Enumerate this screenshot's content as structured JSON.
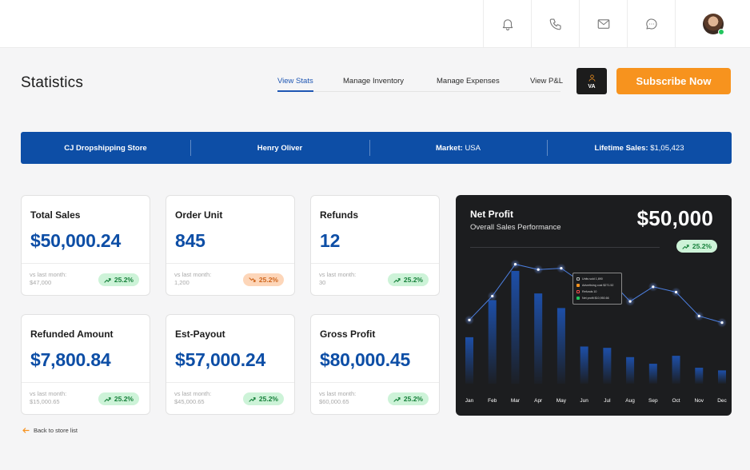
{
  "header": {
    "icons": [
      "bell-icon",
      "phone-icon",
      "mail-icon",
      "chat-icon"
    ],
    "avatar_status": "online"
  },
  "page": {
    "title": "Statistics"
  },
  "tabs": [
    {
      "label": "View Stats",
      "active": true
    },
    {
      "label": "Manage Inventory",
      "active": false
    },
    {
      "label": "Manage Expenses",
      "active": false
    },
    {
      "label": "View P&L",
      "active": false
    }
  ],
  "va_button": {
    "label": "VA"
  },
  "subscribe_button": {
    "label": "Subscribe Now"
  },
  "banner": {
    "store": "CJ Dropshipping Store",
    "owner": "Henry Oliver",
    "market_label": "Market:",
    "market_value": "USA",
    "lifetime_label": "Lifetime Sales:",
    "lifetime_value": "$1,05,423"
  },
  "cards": [
    {
      "label": "Total Sales",
      "value": "$50,000.24",
      "vs_label": "vs last month:",
      "vs_value": "$47,000",
      "change": "25.2%",
      "trend": "up"
    },
    {
      "label": "Order Unit",
      "value": "845",
      "vs_label": "vs last month:",
      "vs_value": "1,200",
      "change": "25.2%",
      "trend": "down"
    },
    {
      "label": "Refunds",
      "value": "12",
      "vs_label": "vs last month:",
      "vs_value": "30",
      "change": "25.2%",
      "trend": "up"
    },
    {
      "label": "Refunded Amount",
      "value": "$7,800.84",
      "vs_label": "vs last month:",
      "vs_value": "$15,000.65",
      "change": "25.2%",
      "trend": "up"
    },
    {
      "label": "Est-Payout",
      "value": "$57,000.24",
      "vs_label": "vs last month:",
      "vs_value": "$45,000.65",
      "change": "25.2%",
      "trend": "up"
    },
    {
      "label": "Gross Profit",
      "value": "$80,000.45",
      "vs_label": "vs last month:",
      "vs_value": "$60,000.65",
      "change": "25.2%",
      "trend": "up"
    }
  ],
  "net_profit": {
    "title": "Net Profit",
    "subtitle": "Overall Sales Performance",
    "value": "$50,000",
    "change": "25.2%",
    "tooltip": [
      {
        "label": "Units sold 1,890",
        "color": "#1c1d1f"
      },
      {
        "label": "Advertising cost $271.52",
        "color": "#f7931e"
      },
      {
        "label": "Refunds 10",
        "color": "#1c1d1f"
      },
      {
        "label": "Net profit $10,950.66",
        "color": "#22c55e"
      }
    ]
  },
  "chart_data": {
    "type": "bar",
    "categories": [
      "Jan",
      "Feb",
      "Mar",
      "Apr",
      "May",
      "Jun",
      "Jul",
      "Aug",
      "Sep",
      "Oct",
      "Nov",
      "Dec"
    ],
    "series": [
      {
        "values": [
          0.35,
          0.63,
          0.85,
          0.68,
          0.57,
          0.28,
          0.27,
          0.2,
          0.15,
          0.21,
          0.12,
          0.1
        ]
      },
      {
        "values": [
          0.48,
          0.66,
          0.9,
          0.86,
          0.87,
          0.75,
          0.8,
          0.62,
          0.73,
          0.69,
          0.51,
          0.46
        ]
      }
    ],
    "grid": false,
    "colors": {
      "bar": "#1d4fa8",
      "line": "#4c7fe0",
      "point": "#ffffff"
    }
  },
  "back_link": {
    "label": "Back to store list"
  }
}
